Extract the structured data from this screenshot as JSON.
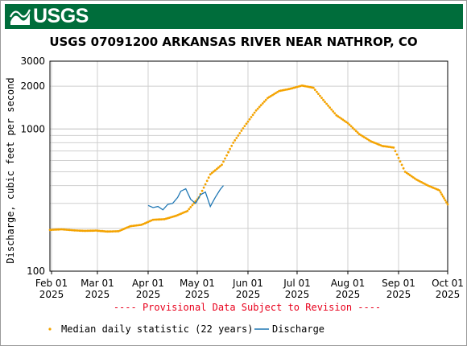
{
  "banner": {
    "logo_text": "USGS",
    "logo_icon": "usgs-wave-icon",
    "color": "#006d3b"
  },
  "chart_data": {
    "type": "scatter",
    "title": "USGS 07091200 ARKANSAS RIVER NEAR NATHROP, CO",
    "ylabel": "Discharge, cubic feet per second",
    "y_scale": "log",
    "ylim": [
      100,
      3000
    ],
    "y_ticks": [
      {
        "value": 100,
        "label": "100"
      },
      {
        "value": 1000,
        "label": "1000"
      },
      {
        "value": 2000,
        "label": "2000"
      },
      {
        "value": 3000,
        "label": "3000"
      }
    ],
    "x_ticks": [
      {
        "date": "2025-02-01",
        "label": "Feb 01",
        "year": "2025"
      },
      {
        "date": "2025-03-01",
        "label": "Mar 01",
        "year": "2025"
      },
      {
        "date": "2025-04-01",
        "label": "Apr 01",
        "year": "2025"
      },
      {
        "date": "2025-05-01",
        "label": "May 01",
        "year": "2025"
      },
      {
        "date": "2025-06-01",
        "label": "Jun 01",
        "year": "2025"
      },
      {
        "date": "2025-07-01",
        "label": "Jul 01",
        "year": "2025"
      },
      {
        "date": "2025-08-01",
        "label": "Aug 01",
        "year": "2025"
      },
      {
        "date": "2025-09-01",
        "label": "Sep 01",
        "year": "2025"
      },
      {
        "date": "2025-10-01",
        "label": "Oct 01",
        "year": "2025"
      }
    ],
    "xlim": [
      "2025-01-31",
      "2025-10-01"
    ],
    "grid": true,
    "provisional_note": "---- Provisional Data Subject to Revision ----",
    "series": [
      {
        "name": "Median daily statistic (22 years)",
        "kind": "points",
        "color": "#f4a300",
        "points": [
          [
            "2025-01-31",
            195
          ],
          [
            "2025-02-07",
            197
          ],
          [
            "2025-02-14",
            194
          ],
          [
            "2025-02-21",
            192
          ],
          [
            "2025-02-28",
            193
          ],
          [
            "2025-03-07",
            190
          ],
          [
            "2025-03-14",
            191
          ],
          [
            "2025-03-21",
            207
          ],
          [
            "2025-03-28",
            212
          ],
          [
            "2025-04-04",
            230
          ],
          [
            "2025-04-11",
            232
          ],
          [
            "2025-04-18",
            245
          ],
          [
            "2025-04-25",
            265
          ],
          [
            "2025-05-02",
            330
          ],
          [
            "2025-05-09",
            480
          ],
          [
            "2025-05-16",
            560
          ],
          [
            "2025-05-23",
            800
          ],
          [
            "2025-05-30",
            1050
          ],
          [
            "2025-06-06",
            1350
          ],
          [
            "2025-06-13",
            1650
          ],
          [
            "2025-06-20",
            1850
          ],
          [
            "2025-06-27",
            1920
          ],
          [
            "2025-07-04",
            2020
          ],
          [
            "2025-07-11",
            1950
          ],
          [
            "2025-07-18",
            1550
          ],
          [
            "2025-07-25",
            1250
          ],
          [
            "2025-08-01",
            1100
          ],
          [
            "2025-08-08",
            920
          ],
          [
            "2025-08-15",
            820
          ],
          [
            "2025-08-22",
            760
          ],
          [
            "2025-08-29",
            740
          ],
          [
            "2025-09-05",
            500
          ],
          [
            "2025-09-12",
            440
          ],
          [
            "2025-09-19",
            400
          ],
          [
            "2025-09-26",
            370
          ],
          [
            "2025-10-01",
            295
          ]
        ]
      },
      {
        "name": "Discharge",
        "kind": "line",
        "color": "#1f77b4",
        "points": [
          [
            "2025-04-01",
            290
          ],
          [
            "2025-04-04",
            280
          ],
          [
            "2025-04-07",
            285
          ],
          [
            "2025-04-10",
            270
          ],
          [
            "2025-04-13",
            295
          ],
          [
            "2025-04-16",
            300
          ],
          [
            "2025-04-19",
            330
          ],
          [
            "2025-04-21",
            365
          ],
          [
            "2025-04-24",
            380
          ],
          [
            "2025-04-27",
            320
          ],
          [
            "2025-04-30",
            300
          ],
          [
            "2025-05-03",
            345
          ],
          [
            "2025-05-06",
            360
          ],
          [
            "2025-05-09",
            285
          ],
          [
            "2025-05-12",
            330
          ],
          [
            "2025-05-15",
            375
          ],
          [
            "2025-05-17",
            400
          ]
        ]
      }
    ],
    "legend_position": "bottom"
  }
}
